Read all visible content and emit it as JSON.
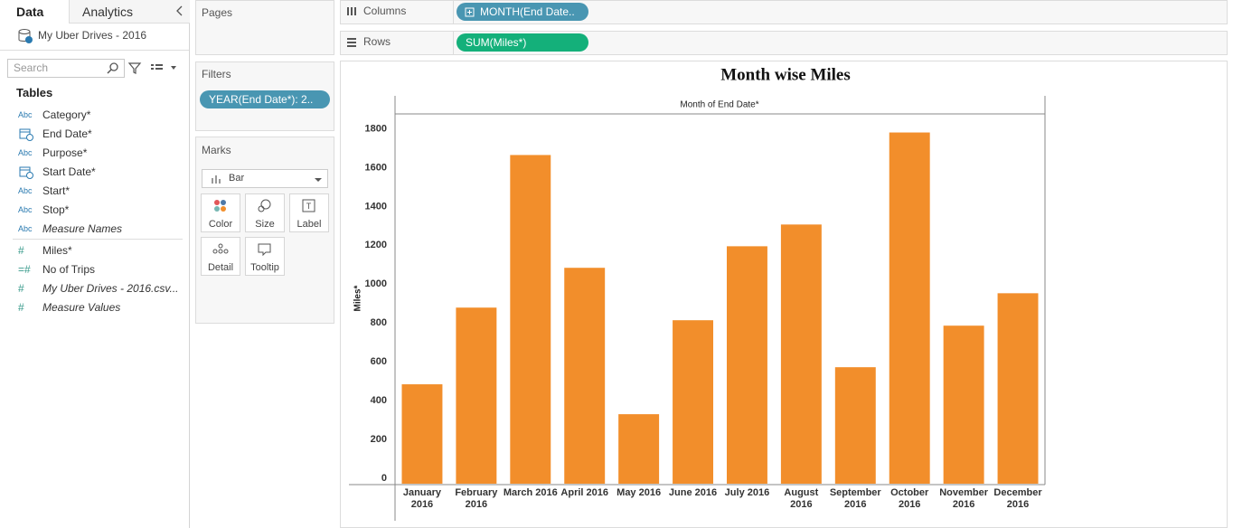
{
  "sidebar": {
    "tabs": [
      "Data",
      "Analytics"
    ],
    "datasource": "My Uber Drives - 2016",
    "search_placeholder": "Search",
    "tables_header": "Tables",
    "fields": [
      {
        "icon": "Abc",
        "name": "Category*",
        "italic": false
      },
      {
        "icon": "date",
        "name": "End Date*",
        "italic": false
      },
      {
        "icon": "Abc",
        "name": "Purpose*",
        "italic": false
      },
      {
        "icon": "date",
        "name": "Start Date*",
        "italic": false
      },
      {
        "icon": "Abc",
        "name": "Start*",
        "italic": false
      },
      {
        "icon": "Abc",
        "name": "Stop*",
        "italic": false
      },
      {
        "icon": "Abc",
        "name": "Measure Names",
        "italic": true
      },
      {
        "icon": "#",
        "name": "Miles*",
        "italic": false
      },
      {
        "icon": "=#",
        "name": "No of Trips",
        "italic": false
      },
      {
        "icon": "#",
        "name": "My Uber Drives - 2016.csv...",
        "italic": true
      },
      {
        "icon": "#",
        "name": "Measure Values",
        "italic": true
      }
    ]
  },
  "pages": {
    "title": "Pages"
  },
  "filters": {
    "title": "Filters",
    "pills": [
      "YEAR(End Date*): 2.."
    ]
  },
  "marks": {
    "title": "Marks",
    "mark_type": "Bar",
    "buttons": [
      "Color",
      "Size",
      "Label",
      "Detail",
      "Tooltip"
    ]
  },
  "shelves": {
    "columns": {
      "label": "Columns",
      "pill": "MONTH(End Date.."
    },
    "rows": {
      "label": "Rows",
      "pill": "SUM(Miles*)"
    }
  },
  "chart_data": {
    "type": "bar",
    "title": "Month wise Miles",
    "x_header": "Month of End Date*",
    "y_label": "Miles*",
    "categories": [
      "January 2016",
      "February 2016",
      "March 2016",
      "April 2016",
      "May 2016",
      "June 2016",
      "July 2016",
      "August 2016",
      "September 2016",
      "October 2016",
      "November 2016",
      "December 2016"
    ],
    "values": [
      512,
      907,
      1693,
      1112,
      358,
      842,
      1223,
      1335,
      600,
      1809,
      814,
      981
    ],
    "color": "#f28e2b",
    "ylim": [
      0,
      1900
    ],
    "yticks": [
      0,
      200,
      400,
      600,
      800,
      1000,
      1200,
      1400,
      1600,
      1800
    ],
    "grid": false
  }
}
